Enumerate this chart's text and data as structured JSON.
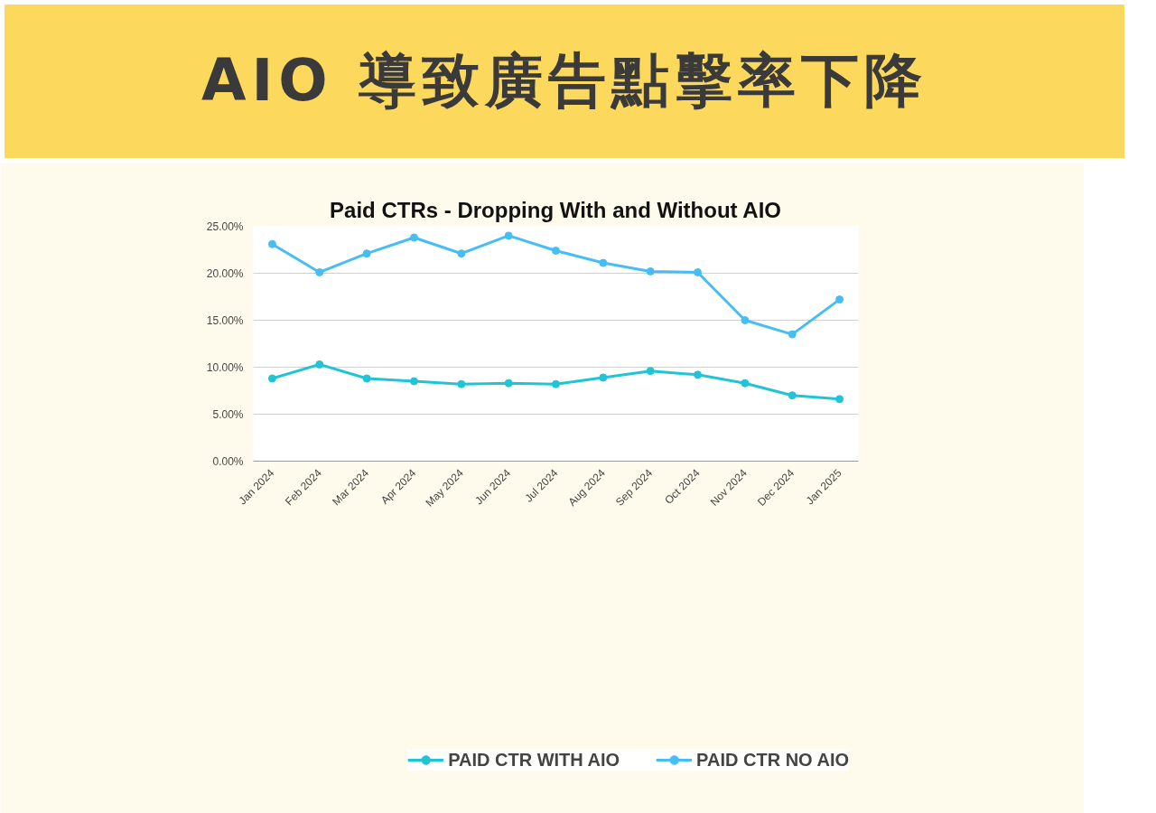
{
  "chart_data": {
    "type": "line",
    "title": "AIO 導致廣告點擊率下降",
    "subtitle": "Paid CTRs - Dropping With and Without AIO",
    "categories": [
      "Jan 2024",
      "Feb 2024",
      "Mar 2024",
      "Apr 2024",
      "May 2024",
      "Jun 2024",
      "Jul 2024",
      "Aug 2024",
      "Sep 2024",
      "Oct 2024",
      "Nov 2024",
      "Dec 2024",
      "Jan 2025"
    ],
    "series": [
      {
        "name": "PAID CTR WITH AIO",
        "color": "#21c4d6",
        "values": [
          8.8,
          10.3,
          8.8,
          8.5,
          8.2,
          8.3,
          8.2,
          8.9,
          9.6,
          9.2,
          8.3,
          7.0,
          6.6
        ]
      },
      {
        "name": "PAID CTR NO AIO",
        "color": "#47bdf5",
        "values": [
          23.1,
          20.1,
          22.1,
          23.8,
          22.1,
          24.0,
          22.4,
          21.1,
          20.2,
          20.1,
          15.0,
          13.5,
          17.2
        ]
      }
    ],
    "ylim": [
      0,
      25
    ],
    "yticks": [
      {
        "value": 0,
        "label": "0.00%"
      },
      {
        "value": 5,
        "label": "5.00%"
      },
      {
        "value": 10,
        "label": "10.00%"
      },
      {
        "value": 15,
        "label": "15.00%"
      },
      {
        "value": 20,
        "label": "20.00%"
      },
      {
        "value": 25,
        "label": "25.00%"
      }
    ],
    "grid": "y",
    "legend": "bottom",
    "marker": "circle",
    "line_style": "solid"
  }
}
